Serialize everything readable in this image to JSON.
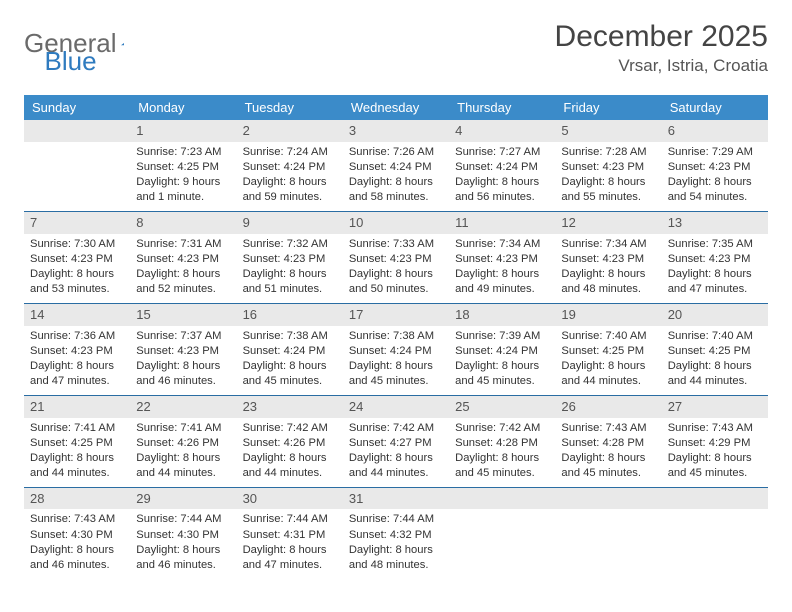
{
  "brand": {
    "part1": "General",
    "part2": "Blue",
    "gray_color": "#6a6a6a",
    "blue_color": "#2f7bbf"
  },
  "header": {
    "title": "December 2025",
    "location": "Vrsar, Istria, Croatia"
  },
  "colors": {
    "header_bg": "#3b8bc9",
    "header_text": "#ffffff",
    "daynum_bg": "#e9e9e9",
    "row_border": "#2a6da3",
    "body_text": "#333333"
  },
  "weekdays": [
    "Sunday",
    "Monday",
    "Tuesday",
    "Wednesday",
    "Thursday",
    "Friday",
    "Saturday"
  ],
  "weeks": [
    [
      {
        "num": "",
        "sunrise": "",
        "sunset": "",
        "daylight": ""
      },
      {
        "num": "1",
        "sunrise": "Sunrise: 7:23 AM",
        "sunset": "Sunset: 4:25 PM",
        "daylight": "Daylight: 9 hours and 1 minute."
      },
      {
        "num": "2",
        "sunrise": "Sunrise: 7:24 AM",
        "sunset": "Sunset: 4:24 PM",
        "daylight": "Daylight: 8 hours and 59 minutes."
      },
      {
        "num": "3",
        "sunrise": "Sunrise: 7:26 AM",
        "sunset": "Sunset: 4:24 PM",
        "daylight": "Daylight: 8 hours and 58 minutes."
      },
      {
        "num": "4",
        "sunrise": "Sunrise: 7:27 AM",
        "sunset": "Sunset: 4:24 PM",
        "daylight": "Daylight: 8 hours and 56 minutes."
      },
      {
        "num": "5",
        "sunrise": "Sunrise: 7:28 AM",
        "sunset": "Sunset: 4:23 PM",
        "daylight": "Daylight: 8 hours and 55 minutes."
      },
      {
        "num": "6",
        "sunrise": "Sunrise: 7:29 AM",
        "sunset": "Sunset: 4:23 PM",
        "daylight": "Daylight: 8 hours and 54 minutes."
      }
    ],
    [
      {
        "num": "7",
        "sunrise": "Sunrise: 7:30 AM",
        "sunset": "Sunset: 4:23 PM",
        "daylight": "Daylight: 8 hours and 53 minutes."
      },
      {
        "num": "8",
        "sunrise": "Sunrise: 7:31 AM",
        "sunset": "Sunset: 4:23 PM",
        "daylight": "Daylight: 8 hours and 52 minutes."
      },
      {
        "num": "9",
        "sunrise": "Sunrise: 7:32 AM",
        "sunset": "Sunset: 4:23 PM",
        "daylight": "Daylight: 8 hours and 51 minutes."
      },
      {
        "num": "10",
        "sunrise": "Sunrise: 7:33 AM",
        "sunset": "Sunset: 4:23 PM",
        "daylight": "Daylight: 8 hours and 50 minutes."
      },
      {
        "num": "11",
        "sunrise": "Sunrise: 7:34 AM",
        "sunset": "Sunset: 4:23 PM",
        "daylight": "Daylight: 8 hours and 49 minutes."
      },
      {
        "num": "12",
        "sunrise": "Sunrise: 7:34 AM",
        "sunset": "Sunset: 4:23 PM",
        "daylight": "Daylight: 8 hours and 48 minutes."
      },
      {
        "num": "13",
        "sunrise": "Sunrise: 7:35 AM",
        "sunset": "Sunset: 4:23 PM",
        "daylight": "Daylight: 8 hours and 47 minutes."
      }
    ],
    [
      {
        "num": "14",
        "sunrise": "Sunrise: 7:36 AM",
        "sunset": "Sunset: 4:23 PM",
        "daylight": "Daylight: 8 hours and 47 minutes."
      },
      {
        "num": "15",
        "sunrise": "Sunrise: 7:37 AM",
        "sunset": "Sunset: 4:23 PM",
        "daylight": "Daylight: 8 hours and 46 minutes."
      },
      {
        "num": "16",
        "sunrise": "Sunrise: 7:38 AM",
        "sunset": "Sunset: 4:24 PM",
        "daylight": "Daylight: 8 hours and 45 minutes."
      },
      {
        "num": "17",
        "sunrise": "Sunrise: 7:38 AM",
        "sunset": "Sunset: 4:24 PM",
        "daylight": "Daylight: 8 hours and 45 minutes."
      },
      {
        "num": "18",
        "sunrise": "Sunrise: 7:39 AM",
        "sunset": "Sunset: 4:24 PM",
        "daylight": "Daylight: 8 hours and 45 minutes."
      },
      {
        "num": "19",
        "sunrise": "Sunrise: 7:40 AM",
        "sunset": "Sunset: 4:25 PM",
        "daylight": "Daylight: 8 hours and 44 minutes."
      },
      {
        "num": "20",
        "sunrise": "Sunrise: 7:40 AM",
        "sunset": "Sunset: 4:25 PM",
        "daylight": "Daylight: 8 hours and 44 minutes."
      }
    ],
    [
      {
        "num": "21",
        "sunrise": "Sunrise: 7:41 AM",
        "sunset": "Sunset: 4:25 PM",
        "daylight": "Daylight: 8 hours and 44 minutes."
      },
      {
        "num": "22",
        "sunrise": "Sunrise: 7:41 AM",
        "sunset": "Sunset: 4:26 PM",
        "daylight": "Daylight: 8 hours and 44 minutes."
      },
      {
        "num": "23",
        "sunrise": "Sunrise: 7:42 AM",
        "sunset": "Sunset: 4:26 PM",
        "daylight": "Daylight: 8 hours and 44 minutes."
      },
      {
        "num": "24",
        "sunrise": "Sunrise: 7:42 AM",
        "sunset": "Sunset: 4:27 PM",
        "daylight": "Daylight: 8 hours and 44 minutes."
      },
      {
        "num": "25",
        "sunrise": "Sunrise: 7:42 AM",
        "sunset": "Sunset: 4:28 PM",
        "daylight": "Daylight: 8 hours and 45 minutes."
      },
      {
        "num": "26",
        "sunrise": "Sunrise: 7:43 AM",
        "sunset": "Sunset: 4:28 PM",
        "daylight": "Daylight: 8 hours and 45 minutes."
      },
      {
        "num": "27",
        "sunrise": "Sunrise: 7:43 AM",
        "sunset": "Sunset: 4:29 PM",
        "daylight": "Daylight: 8 hours and 45 minutes."
      }
    ],
    [
      {
        "num": "28",
        "sunrise": "Sunrise: 7:43 AM",
        "sunset": "Sunset: 4:30 PM",
        "daylight": "Daylight: 8 hours and 46 minutes."
      },
      {
        "num": "29",
        "sunrise": "Sunrise: 7:44 AM",
        "sunset": "Sunset: 4:30 PM",
        "daylight": "Daylight: 8 hours and 46 minutes."
      },
      {
        "num": "30",
        "sunrise": "Sunrise: 7:44 AM",
        "sunset": "Sunset: 4:31 PM",
        "daylight": "Daylight: 8 hours and 47 minutes."
      },
      {
        "num": "31",
        "sunrise": "Sunrise: 7:44 AM",
        "sunset": "Sunset: 4:32 PM",
        "daylight": "Daylight: 8 hours and 48 minutes."
      },
      {
        "num": "",
        "sunrise": "",
        "sunset": "",
        "daylight": ""
      },
      {
        "num": "",
        "sunrise": "",
        "sunset": "",
        "daylight": ""
      },
      {
        "num": "",
        "sunrise": "",
        "sunset": "",
        "daylight": ""
      }
    ]
  ]
}
